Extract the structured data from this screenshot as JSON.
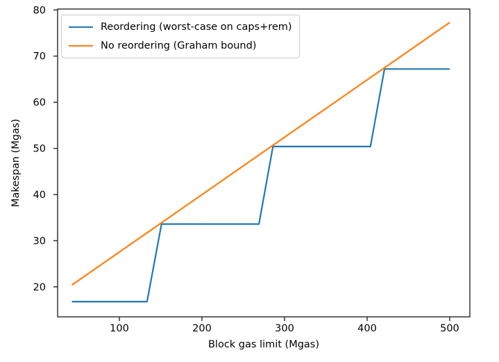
{
  "chart_data": {
    "type": "line",
    "xlabel": "Block gas limit (Mgas)",
    "ylabel": "Makespan (Mgas)",
    "xlim": [
      25.2,
      524.4
    ],
    "ylim": [
      13.5,
      80.2
    ],
    "xticks": [
      100,
      200,
      300,
      400,
      500
    ],
    "yticks": [
      20,
      30,
      40,
      50,
      60,
      70,
      80
    ],
    "grid": false,
    "legend_position": "upper-left",
    "series": [
      {
        "name": "Reordering (worst-case on caps+rem)",
        "color": "#1f77b4",
        "x": [
          42.5,
          133.5,
          151,
          269,
          286,
          404,
          421,
          500
        ],
        "y": [
          16.8,
          16.8,
          33.6,
          33.6,
          50.4,
          50.4,
          67.2,
          67.2
        ]
      },
      {
        "name": "No reordering (Graham bound)",
        "color": "#ff7f0e",
        "x": [
          42.5,
          500
        ],
        "y": [
          20.4,
          77.3
        ]
      }
    ]
  },
  "colors": {
    "spine": "#262626",
    "tick": "#262626",
    "text": "#000000",
    "legend_border": "#cccccc"
  }
}
